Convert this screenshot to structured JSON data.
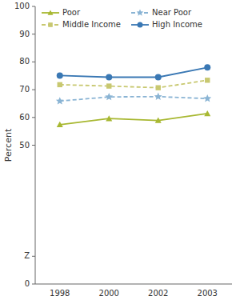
{
  "chart_data": {
    "type": "line",
    "categories": [
      "1998",
      "2000",
      "2002",
      "2003"
    ],
    "series": [
      {
        "name": "Poor",
        "values": [
          57.4,
          59.6,
          58.9,
          61.4
        ],
        "color": "#a8b832",
        "marker": "triangle",
        "line_style": "solid"
      },
      {
        "name": "Near Poor",
        "values": [
          65.9,
          67.4,
          67.5,
          66.8
        ],
        "color": "#8ab4d4",
        "marker": "star",
        "line_style": "dashed"
      },
      {
        "name": "Middle Income",
        "values": [
          71.8,
          71.3,
          70.7,
          73.4
        ],
        "color": "#c8c870",
        "marker": "square",
        "line_style": "dashed"
      },
      {
        "name": "High Income",
        "values": [
          75.1,
          74.5,
          74.5,
          78.0
        ],
        "color": "#3a78b4",
        "marker": "circle",
        "line_style": "solid"
      }
    ],
    "y_label": "Percent",
    "ylim": [
      0,
      100
    ],
    "yticks": [
      0,
      {
        "value": 10,
        "label": "Z"
      },
      50,
      60,
      70,
      80,
      90,
      100
    ],
    "legend": "upper left"
  }
}
